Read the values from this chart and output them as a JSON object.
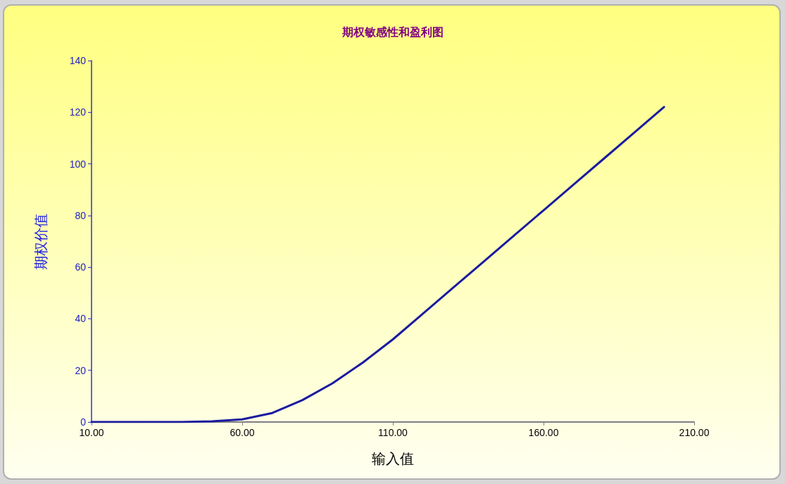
{
  "chart_data": {
    "type": "line",
    "title": "期权敏感性和盈利图",
    "xlabel": "输入值",
    "ylabel": "期权价值",
    "x": [
      10,
      20,
      30,
      40,
      50,
      60,
      70,
      80,
      90,
      100,
      110,
      120,
      130,
      140,
      150,
      160,
      170,
      180,
      190,
      200
    ],
    "series": [
      {
        "color": "#1a1aa0",
        "values": [
          0,
          0,
          0,
          0,
          0.3,
          1,
          3.5,
          8.5,
          15,
          23,
          32,
          42,
          52,
          62,
          72,
          82,
          92,
          102,
          112,
          122
        ]
      }
    ],
    "xlim": [
      10,
      210
    ],
    "xticks": [
      {
        "value": 10,
        "label": "10.00"
      },
      {
        "value": 60,
        "label": "60.00"
      },
      {
        "value": 110,
        "label": "110.00"
      },
      {
        "value": 160,
        "label": "160.00"
      },
      {
        "value": 210,
        "label": "210.00"
      }
    ],
    "ylim": [
      0,
      140
    ],
    "yticks": [
      0,
      20,
      40,
      60,
      80,
      100,
      120,
      140
    ],
    "grid": false,
    "marker": "none",
    "line_style": "solid"
  }
}
